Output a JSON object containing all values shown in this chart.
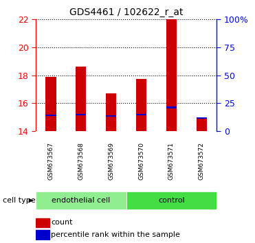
{
  "title": "GDS4461 / 102622_r_at",
  "samples": [
    "GSM673567",
    "GSM673568",
    "GSM673569",
    "GSM673570",
    "GSM673571",
    "GSM673572"
  ],
  "bar_bottoms": [
    14,
    14,
    14,
    14,
    14,
    14
  ],
  "bar_tops": [
    17.9,
    18.65,
    16.7,
    17.75,
    22.0,
    15.0
  ],
  "percentile_values": [
    15.15,
    15.2,
    15.1,
    15.2,
    15.7,
    14.93
  ],
  "ylim": [
    14,
    22
  ],
  "yticks_left": [
    14,
    16,
    18,
    20,
    22
  ],
  "yticks_right_pct": [
    0,
    25,
    50,
    75,
    100
  ],
  "bar_color": "#cc0000",
  "percentile_color": "#0000cc",
  "bar_width": 0.35,
  "cell_types": [
    {
      "label": "endothelial cell",
      "indices": [
        0,
        1,
        2
      ],
      "color": "#90ee90"
    },
    {
      "label": "control",
      "indices": [
        3,
        4,
        5
      ],
      "color": "#44dd44"
    }
  ],
  "legend_count_label": "count",
  "legend_pct_label": "percentile rank within the sample",
  "cell_type_label": "cell type",
  "background_color": "#ffffff",
  "xticklabel_bg": "#cccccc",
  "xticklabel_border": "#aaaaaa"
}
